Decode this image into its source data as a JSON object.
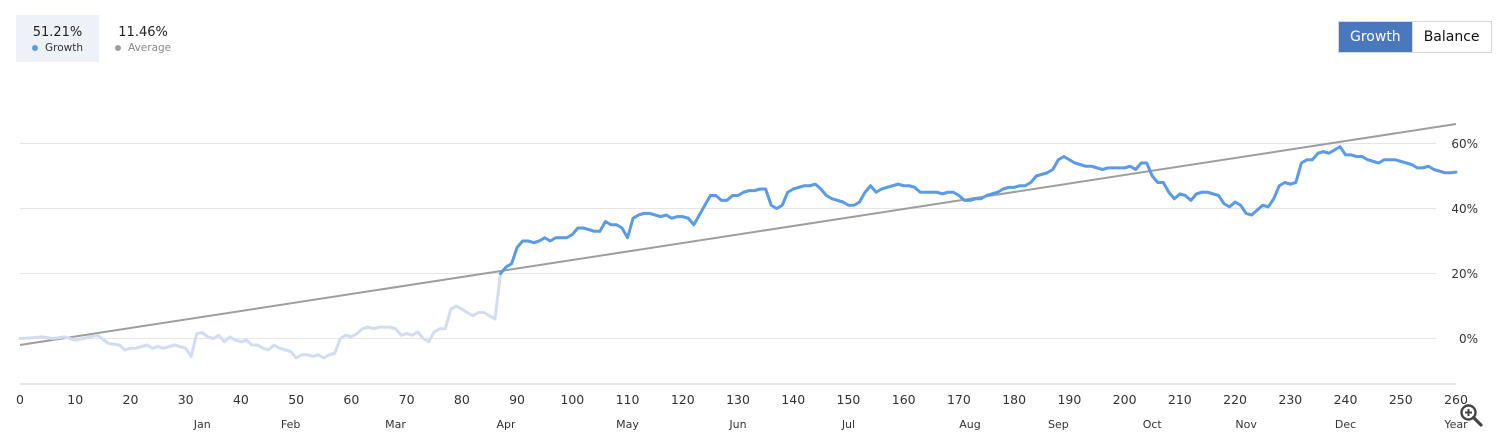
{
  "legend": {
    "growth": {
      "value": "51.21%",
      "label": "Growth",
      "color": "#5b9be5"
    },
    "average": {
      "value": "11.46%",
      "label": "Average",
      "color": "#9e9e9e"
    }
  },
  "toggle": {
    "growth_label": "Growth",
    "balance_label": "Balance",
    "active": "Growth",
    "active_color": "#4a78bf"
  },
  "zoom": {
    "icon": "zoom-in-icon"
  },
  "chart_data": {
    "type": "line",
    "xlim": [
      0,
      260
    ],
    "ylim": [
      -14,
      78
    ],
    "y_ticks": [
      0,
      20,
      40,
      60
    ],
    "y_tick_labels": [
      "0%",
      "20%",
      "40%",
      "60%"
    ],
    "x_ticks": [
      0,
      10,
      20,
      30,
      40,
      50,
      60,
      70,
      80,
      90,
      100,
      110,
      120,
      130,
      140,
      150,
      160,
      170,
      180,
      190,
      200,
      210,
      220,
      230,
      240,
      250,
      260
    ],
    "x_tick_labels": [
      "0",
      "10",
      "20",
      "30",
      "40",
      "50",
      "60",
      "70",
      "80",
      "90",
      "100",
      "110",
      "120",
      "130",
      "140",
      "150",
      "160",
      "170",
      "180",
      "190",
      "200",
      "210",
      "220",
      "230",
      "240",
      "250",
      "260"
    ],
    "months": [
      {
        "label": "Jan",
        "x": 33
      },
      {
        "label": "Feb",
        "x": 49
      },
      {
        "label": "Mar",
        "x": 68
      },
      {
        "label": "Apr",
        "x": 88
      },
      {
        "label": "May",
        "x": 110
      },
      {
        "label": "Jun",
        "x": 130
      },
      {
        "label": "Jul",
        "x": 150
      },
      {
        "label": "Aug",
        "x": 172
      },
      {
        "label": "Sep",
        "x": 188
      },
      {
        "label": "Oct",
        "x": 205
      },
      {
        "label": "Nov",
        "x": 222
      },
      {
        "label": "Dec",
        "x": 240
      },
      {
        "label": "Year",
        "x": 260
      }
    ],
    "grid": true,
    "series": [
      {
        "name": "Growth",
        "color": "#5b9be5",
        "faded_color": "#d3ddf2",
        "faded_until": 87,
        "points": [
          [
            0,
            0
          ],
          [
            2,
            0.2
          ],
          [
            4,
            0.5
          ],
          [
            6,
            0
          ],
          [
            8,
            0.5
          ],
          [
            10,
            -0.5
          ],
          [
            12,
            0.2
          ],
          [
            14,
            1
          ],
          [
            16,
            -1.5
          ],
          [
            18,
            -2
          ],
          [
            19,
            -3.5
          ],
          [
            20,
            -3
          ],
          [
            21,
            -3
          ],
          [
            22,
            -2.5
          ],
          [
            23,
            -2
          ],
          [
            24,
            -3
          ],
          [
            25,
            -2.5
          ],
          [
            26,
            -3
          ],
          [
            27,
            -2.5
          ],
          [
            28,
            -2
          ],
          [
            29,
            -2.5
          ],
          [
            30,
            -3
          ],
          [
            31,
            -5.5
          ],
          [
            32,
            1.5
          ],
          [
            33,
            1.8
          ],
          [
            34,
            0.5
          ],
          [
            35,
            0
          ],
          [
            36,
            1
          ],
          [
            37,
            -1
          ],
          [
            38,
            0.5
          ],
          [
            39,
            -0.5
          ],
          [
            40,
            -1
          ],
          [
            41,
            -0.5
          ],
          [
            42,
            -2
          ],
          [
            43,
            -2
          ],
          [
            44,
            -3
          ],
          [
            45,
            -3.5
          ],
          [
            46,
            -2
          ],
          [
            47,
            -3
          ],
          [
            48,
            -3.5
          ],
          [
            49,
            -4
          ],
          [
            50,
            -6
          ],
          [
            51,
            -5
          ],
          [
            52,
            -5
          ],
          [
            53,
            -5.5
          ],
          [
            54,
            -5
          ],
          [
            55,
            -6
          ],
          [
            56,
            -5
          ],
          [
            57,
            -4.5
          ],
          [
            58,
            0
          ],
          [
            59,
            1
          ],
          [
            60,
            0.5
          ],
          [
            61,
            1.5
          ],
          [
            62,
            3
          ],
          [
            63,
            3.5
          ],
          [
            64,
            3
          ],
          [
            65,
            3.5
          ],
          [
            66,
            3.5
          ],
          [
            67,
            3.5
          ],
          [
            68,
            3
          ],
          [
            69,
            1
          ],
          [
            70,
            1.5
          ],
          [
            71,
            1
          ],
          [
            72,
            2
          ],
          [
            73,
            0
          ],
          [
            74,
            -1
          ],
          [
            75,
            2
          ],
          [
            76,
            3
          ],
          [
            77,
            3
          ],
          [
            78,
            9
          ],
          [
            79,
            10
          ],
          [
            80,
            9
          ],
          [
            81,
            8
          ],
          [
            82,
            7
          ],
          [
            83,
            8
          ],
          [
            84,
            8
          ],
          [
            85,
            7
          ],
          [
            86,
            6
          ],
          [
            87,
            20
          ],
          [
            88,
            22
          ],
          [
            89,
            23
          ],
          [
            90,
            28
          ],
          [
            91,
            30
          ],
          [
            92,
            30
          ],
          [
            93,
            29.5
          ],
          [
            94,
            30
          ],
          [
            95,
            31
          ],
          [
            96,
            30
          ],
          [
            97,
            31
          ],
          [
            98,
            31
          ],
          [
            99,
            31
          ],
          [
            100,
            32
          ],
          [
            101,
            34
          ],
          [
            102,
            34
          ],
          [
            103,
            33.5
          ],
          [
            104,
            33
          ],
          [
            105,
            33
          ],
          [
            106,
            36
          ],
          [
            107,
            35
          ],
          [
            108,
            35
          ],
          [
            109,
            34
          ],
          [
            110,
            31
          ],
          [
            111,
            37
          ],
          [
            112,
            38
          ],
          [
            113,
            38.5
          ],
          [
            114,
            38.5
          ],
          [
            115,
            38
          ],
          [
            116,
            37.5
          ],
          [
            117,
            38
          ],
          [
            118,
            37
          ],
          [
            119,
            37.5
          ],
          [
            120,
            37.5
          ],
          [
            121,
            37
          ],
          [
            122,
            35
          ],
          [
            123,
            38
          ],
          [
            124,
            41
          ],
          [
            125,
            44
          ],
          [
            126,
            44
          ],
          [
            127,
            42.5
          ],
          [
            128,
            42.5
          ],
          [
            129,
            44
          ],
          [
            130,
            44
          ],
          [
            131,
            45
          ],
          [
            132,
            45.5
          ],
          [
            133,
            45.5
          ],
          [
            134,
            46
          ],
          [
            135,
            46
          ],
          [
            136,
            41
          ],
          [
            137,
            40
          ],
          [
            138,
            41
          ],
          [
            139,
            45
          ],
          [
            140,
            46
          ],
          [
            141,
            46.5
          ],
          [
            142,
            47
          ],
          [
            143,
            47
          ],
          [
            144,
            47.5
          ],
          [
            145,
            46
          ],
          [
            146,
            44
          ],
          [
            147,
            43
          ],
          [
            148,
            42.5
          ],
          [
            149,
            42
          ],
          [
            150,
            41
          ],
          [
            151,
            41
          ],
          [
            152,
            42
          ],
          [
            153,
            45
          ],
          [
            154,
            47
          ],
          [
            155,
            45
          ],
          [
            156,
            46
          ],
          [
            157,
            46.5
          ],
          [
            158,
            47
          ],
          [
            159,
            47.5
          ],
          [
            160,
            47
          ],
          [
            161,
            47
          ],
          [
            162,
            46.5
          ],
          [
            163,
            45
          ],
          [
            164,
            45
          ],
          [
            165,
            45
          ],
          [
            166,
            45
          ],
          [
            167,
            44.5
          ],
          [
            168,
            45
          ],
          [
            169,
            45
          ],
          [
            170,
            44
          ],
          [
            171,
            42.5
          ],
          [
            172,
            42.5
          ],
          [
            173,
            43
          ],
          [
            174,
            43
          ],
          [
            175,
            44
          ],
          [
            176,
            44.5
          ],
          [
            177,
            45
          ],
          [
            178,
            46
          ],
          [
            179,
            46.5
          ],
          [
            180,
            46.5
          ],
          [
            181,
            47
          ],
          [
            182,
            47
          ],
          [
            183,
            48
          ],
          [
            184,
            50
          ],
          [
            185,
            50.5
          ],
          [
            186,
            51
          ],
          [
            187,
            52
          ],
          [
            188,
            55
          ],
          [
            189,
            56
          ],
          [
            190,
            55
          ],
          [
            191,
            54
          ],
          [
            192,
            53.5
          ],
          [
            193,
            53
          ],
          [
            194,
            53
          ],
          [
            195,
            52.5
          ],
          [
            196,
            52
          ],
          [
            197,
            52.5
          ],
          [
            198,
            52.5
          ],
          [
            199,
            52.5
          ],
          [
            200,
            52.5
          ],
          [
            201,
            53
          ],
          [
            202,
            52
          ],
          [
            203,
            54
          ],
          [
            204,
            54
          ],
          [
            205,
            50
          ],
          [
            206,
            48
          ],
          [
            207,
            48
          ],
          [
            208,
            45
          ],
          [
            209,
            43
          ],
          [
            210,
            44.5
          ],
          [
            211,
            44
          ],
          [
            212,
            42.5
          ],
          [
            213,
            44.5
          ],
          [
            214,
            45
          ],
          [
            215,
            45
          ],
          [
            216,
            44.5
          ],
          [
            217,
            44
          ],
          [
            218,
            41.5
          ],
          [
            219,
            40.5
          ],
          [
            220,
            42
          ],
          [
            221,
            41
          ],
          [
            222,
            38.5
          ],
          [
            223,
            38
          ],
          [
            224,
            39.5
          ],
          [
            225,
            41
          ],
          [
            226,
            40.5
          ],
          [
            227,
            43
          ],
          [
            228,
            47
          ],
          [
            229,
            48
          ],
          [
            230,
            47.5
          ],
          [
            231,
            48
          ],
          [
            232,
            54
          ],
          [
            233,
            55
          ],
          [
            234,
            55
          ],
          [
            235,
            57
          ],
          [
            236,
            57.5
          ],
          [
            237,
            57
          ],
          [
            238,
            58
          ],
          [
            239,
            59
          ],
          [
            240,
            56.5
          ],
          [
            241,
            56.5
          ],
          [
            242,
            56
          ],
          [
            243,
            56
          ],
          [
            244,
            55
          ],
          [
            245,
            54.5
          ],
          [
            246,
            54
          ],
          [
            247,
            55
          ],
          [
            248,
            55
          ],
          [
            249,
            55
          ],
          [
            250,
            54.5
          ],
          [
            251,
            54
          ],
          [
            252,
            53.5
          ],
          [
            253,
            52.5
          ],
          [
            254,
            52.5
          ],
          [
            255,
            53
          ],
          [
            256,
            52
          ],
          [
            257,
            51.5
          ],
          [
            258,
            51
          ],
          [
            259,
            51
          ],
          [
            260,
            51.2
          ]
        ]
      },
      {
        "name": "Average",
        "color": "#9e9e9e",
        "points": [
          [
            0,
            -2
          ],
          [
            260,
            66
          ]
        ]
      }
    ]
  }
}
